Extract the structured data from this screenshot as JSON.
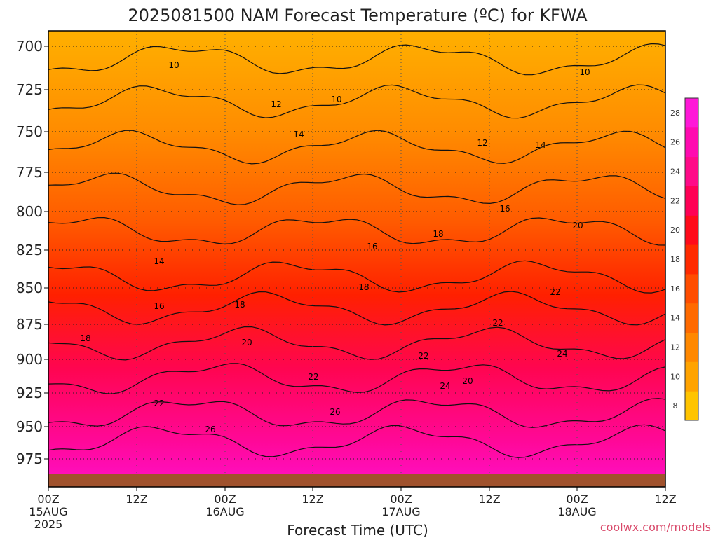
{
  "chart_data": {
    "type": "heatmap",
    "title": "2025081500 NAM Forecast Temperature (ºC) for KFWA",
    "xlabel": "Forecast Time (UTC)",
    "y_ticks": [
      "700",
      "725",
      "750",
      "775",
      "800",
      "825",
      "850",
      "875",
      "900",
      "925",
      "950",
      "975"
    ],
    "x_ticks": [
      {
        "label": "00Z",
        "date": "15AUG",
        "year": "2025"
      },
      {
        "label": "12Z",
        "date": "",
        "year": ""
      },
      {
        "label": "00Z",
        "date": "16AUG",
        "year": ""
      },
      {
        "label": "12Z",
        "date": "",
        "year": ""
      },
      {
        "label": "00Z",
        "date": "17AUG",
        "year": ""
      },
      {
        "label": "12Z",
        "date": "",
        "year": ""
      },
      {
        "label": "00Z",
        "date": "18AUG",
        "year": ""
      },
      {
        "label": "12Z",
        "date": "",
        "year": ""
      }
    ],
    "colorbar_ticks": [
      "8",
      "10",
      "12",
      "14",
      "16",
      "18",
      "20",
      "22",
      "24",
      "26",
      "28"
    ],
    "colorbar_colors": [
      "#FFC400",
      "#FFA300",
      "#FF8800",
      "#FF6A00",
      "#FF4D00",
      "#FF2A00",
      "#FF0A1A",
      "#FF0055",
      "#FF0A88",
      "#FF0AB0",
      "#FF18D8"
    ],
    "contour_labels": [
      "10",
      "10",
      "10",
      "12",
      "12",
      "14",
      "14",
      "14",
      "16",
      "16",
      "16",
      "18",
      "18",
      "18",
      "18",
      "20",
      "20",
      "20",
      "22",
      "22",
      "22",
      "22",
      "22",
      "24",
      "24",
      "26",
      "26"
    ]
  },
  "credit": "coolwx.com/models"
}
